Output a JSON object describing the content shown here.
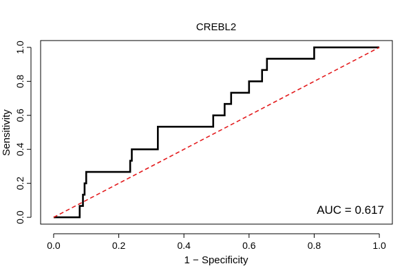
{
  "chart_data": {
    "type": "line",
    "title": "CREBL2",
    "xlabel": "1 − Specificity",
    "ylabel": "Sensitivity",
    "xlim": [
      -0.04,
      1.04
    ],
    "ylim": [
      -0.04,
      1.04
    ],
    "x_ticks": [
      0.0,
      0.2,
      0.4,
      0.6,
      0.8,
      1.0
    ],
    "x_tick_labels": [
      "0.0",
      "0.2",
      "0.4",
      "0.6",
      "0.8",
      "1.0"
    ],
    "y_ticks": [
      0.0,
      0.2,
      0.4,
      0.6,
      0.8,
      1.0
    ],
    "y_tick_labels": [
      "0.0",
      "0.2",
      "0.4",
      "0.6",
      "0.8",
      "1.0"
    ],
    "grid": false,
    "annotation": "AUC = 0.617",
    "series": [
      {
        "color": "#000000",
        "style": "solid",
        "x": [
          0.0,
          0.08,
          0.08,
          0.09,
          0.09,
          0.095,
          0.095,
          0.1,
          0.1,
          0.11,
          0.11,
          0.235,
          0.235,
          0.24,
          0.24,
          0.32,
          0.32,
          0.49,
          0.49,
          0.525,
          0.525,
          0.545,
          0.545,
          0.6,
          0.6,
          0.64,
          0.64,
          0.655,
          0.655,
          0.8,
          0.8,
          1.0
        ],
        "y": [
          0.0,
          0.0,
          0.067,
          0.067,
          0.133,
          0.133,
          0.2,
          0.2,
          0.267,
          0.267,
          0.267,
          0.267,
          0.333,
          0.333,
          0.4,
          0.4,
          0.533,
          0.533,
          0.6,
          0.6,
          0.667,
          0.667,
          0.733,
          0.733,
          0.8,
          0.8,
          0.867,
          0.867,
          0.933,
          0.933,
          1.0,
          1.0
        ]
      },
      {
        "color": "#e31a1c",
        "style": "dashed",
        "x": [
          0.0,
          1.0
        ],
        "y": [
          0.0,
          1.0
        ]
      }
    ]
  }
}
